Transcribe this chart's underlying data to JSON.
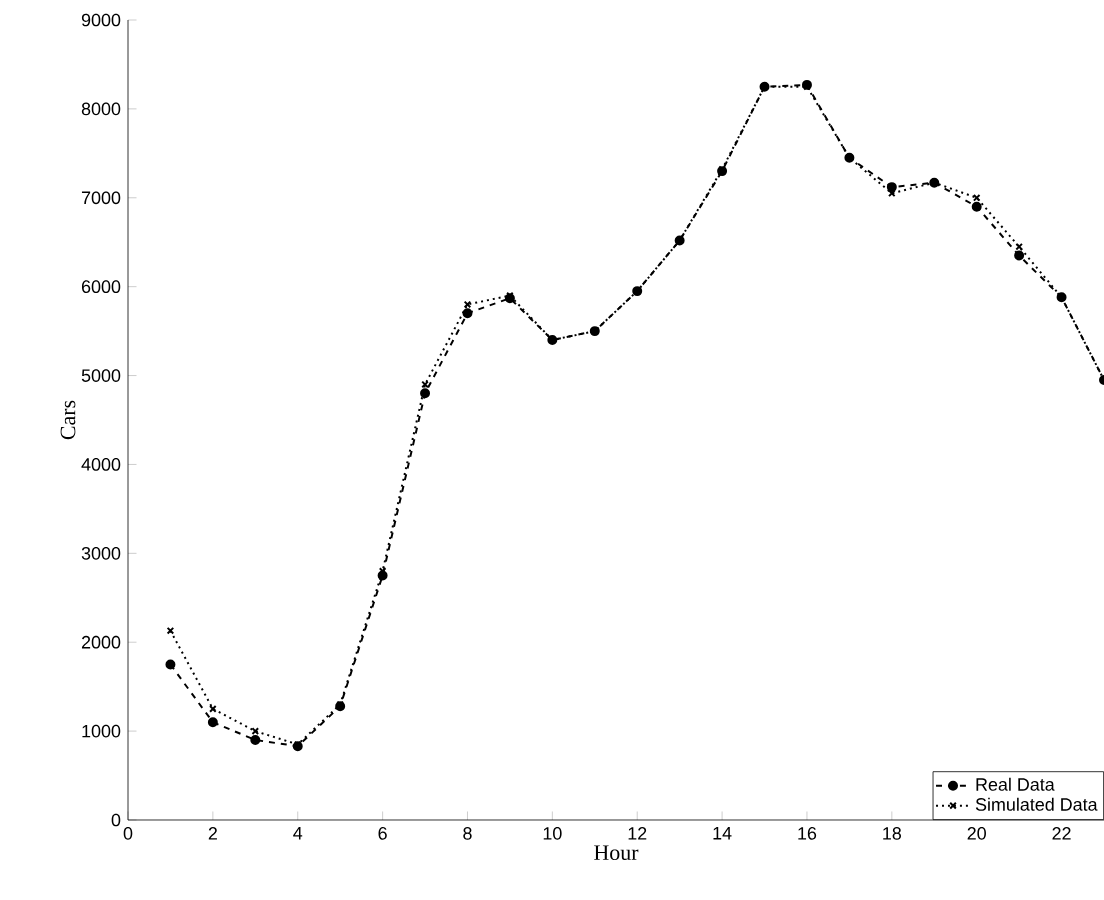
{
  "chart_data": {
    "type": "line",
    "xlabel": "Hour",
    "ylabel": "Cars",
    "x": [
      1,
      2,
      3,
      4,
      5,
      6,
      7,
      8,
      9,
      10,
      11,
      12,
      13,
      14,
      15,
      16,
      17,
      18,
      19,
      20,
      21,
      22,
      23
    ],
    "series": [
      {
        "name": "Real Data",
        "color": "#000000",
        "marker": "circle",
        "line_style": "dashed",
        "values": [
          1750,
          1100,
          900,
          830,
          1280,
          2750,
          4800,
          5700,
          5870,
          5400,
          5500,
          5950,
          6520,
          7300,
          8250,
          8270,
          7450,
          7120,
          7170,
          6900,
          6350,
          5880,
          4950
        ]
      },
      {
        "name": "Simulated Data",
        "color": "#000000",
        "marker": "cross",
        "line_style": "dotted",
        "values": [
          2130,
          1250,
          1000,
          850,
          1300,
          2800,
          4900,
          5800,
          5900,
          5400,
          5500,
          5950,
          6520,
          7320,
          8250,
          8250,
          7450,
          7050,
          7170,
          7000,
          6450,
          5880,
          4950
        ]
      }
    ],
    "xlim": [
      0,
      23
    ],
    "ylim": [
      0,
      9000
    ],
    "xticks": [
      0,
      2,
      4,
      6,
      8,
      10,
      12,
      14,
      16,
      18,
      20,
      22
    ],
    "yticks": [
      0,
      1000,
      2000,
      3000,
      4000,
      5000,
      6000,
      7000,
      8000,
      9000
    ],
    "legend": "bottom right",
    "grid": false
  }
}
